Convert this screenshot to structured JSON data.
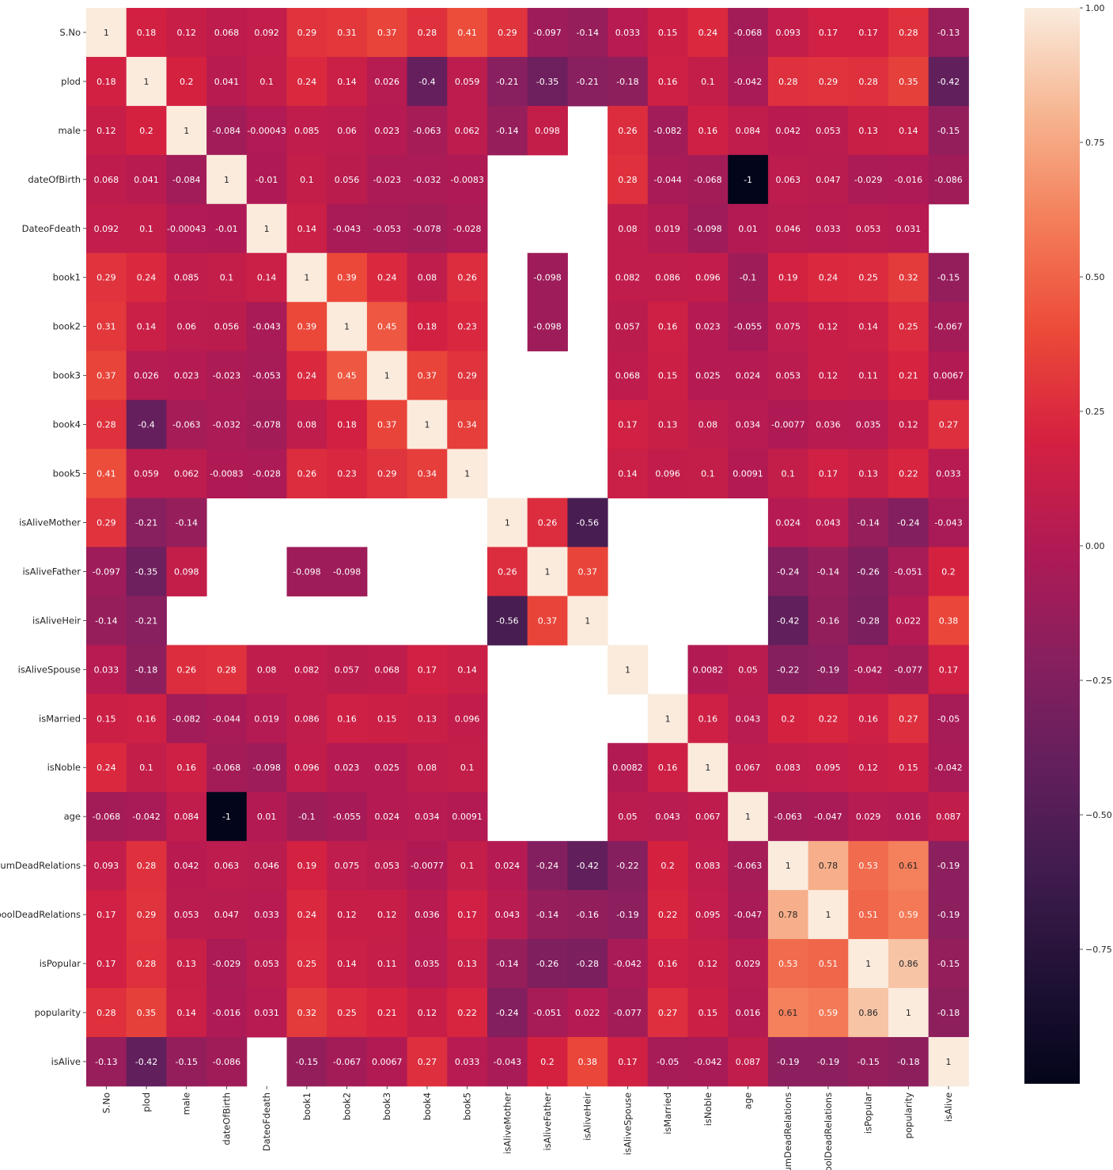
{
  "chart_data": {
    "type": "heatmap",
    "colormap": "rocket",
    "vmin": -1,
    "vmax": 1,
    "annot": true,
    "labels": [
      "S.No",
      "plod",
      "male",
      "dateOfBirth",
      "DateoFdeath",
      "book1",
      "book2",
      "book3",
      "book4",
      "book5",
      "isAliveMother",
      "isAliveFather",
      "isAliveHeir",
      "isAliveSpouse",
      "isMarried",
      "isNoble",
      "age",
      "numDeadRelations",
      "boolDeadRelations",
      "isPopular",
      "popularity",
      "isAlive"
    ],
    "matrix": [
      [
        "1",
        "0.18",
        "0.12",
        "0.068",
        "0.092",
        "0.29",
        "0.31",
        "0.37",
        "0.28",
        "0.41",
        "0.29",
        "-0.097",
        "-0.14",
        "0.033",
        "0.15",
        "0.24",
        "-0.068",
        "0.093",
        "0.17",
        "0.17",
        "0.28",
        "-0.13"
      ],
      [
        "0.18",
        "1",
        "0.2",
        "0.041",
        "0.1",
        "0.24",
        "0.14",
        "0.026",
        "-0.4",
        "0.059",
        "-0.21",
        "-0.35",
        "-0.21",
        "-0.18",
        "0.16",
        "0.1",
        "-0.042",
        "0.28",
        "0.29",
        "0.28",
        "0.35",
        "-0.42"
      ],
      [
        "0.12",
        "0.2",
        "1",
        "-0.084",
        "-0.00043",
        "0.085",
        "0.06",
        "0.023",
        "-0.063",
        "0.062",
        "-0.14",
        "0.098",
        null,
        "0.26",
        "-0.082",
        "0.16",
        "0.084",
        "0.042",
        "0.053",
        "0.13",
        "0.14",
        "-0.15"
      ],
      [
        "0.068",
        "0.041",
        "-0.084",
        "1",
        "-0.01",
        "0.1",
        "0.056",
        "-0.023",
        "-0.032",
        "-0.0083",
        null,
        null,
        null,
        "0.28",
        "-0.044",
        "-0.068",
        "-1",
        "0.063",
        "0.047",
        "-0.029",
        "-0.016",
        "-0.086"
      ],
      [
        "0.092",
        "0.1",
        "-0.00043",
        "-0.01",
        "1",
        "0.14",
        "-0.043",
        "-0.053",
        "-0.078",
        "-0.028",
        null,
        null,
        null,
        "0.08",
        "0.019",
        "-0.098",
        "0.01",
        "0.046",
        "0.033",
        "0.053",
        "0.031",
        null
      ],
      [
        "0.29",
        "0.24",
        "0.085",
        "0.1",
        "0.14",
        "1",
        "0.39",
        "0.24",
        "0.08",
        "0.26",
        null,
        "-0.098",
        null,
        "0.082",
        "0.086",
        "0.096",
        "-0.1",
        "0.19",
        "0.24",
        "0.25",
        "0.32",
        "-0.15"
      ],
      [
        "0.31",
        "0.14",
        "0.06",
        "0.056",
        "-0.043",
        "0.39",
        "1",
        "0.45",
        "0.18",
        "0.23",
        null,
        "-0.098",
        null,
        "0.057",
        "0.16",
        "0.023",
        "-0.055",
        "0.075",
        "0.12",
        "0.14",
        "0.25",
        "-0.067"
      ],
      [
        "0.37",
        "0.026",
        "0.023",
        "-0.023",
        "-0.053",
        "0.24",
        "0.45",
        "1",
        "0.37",
        "0.29",
        null,
        null,
        null,
        "0.068",
        "0.15",
        "0.025",
        "0.024",
        "0.053",
        "0.12",
        "0.11",
        "0.21",
        "0.0067"
      ],
      [
        "0.28",
        "-0.4",
        "-0.063",
        "-0.032",
        "-0.078",
        "0.08",
        "0.18",
        "0.37",
        "1",
        "0.34",
        null,
        null,
        null,
        "0.17",
        "0.13",
        "0.08",
        "0.034",
        "-0.0077",
        "0.036",
        "0.035",
        "0.12",
        "0.27"
      ],
      [
        "0.41",
        "0.059",
        "0.062",
        "-0.0083",
        "-0.028",
        "0.26",
        "0.23",
        "0.29",
        "0.34",
        "1",
        null,
        null,
        null,
        "0.14",
        "0.096",
        "0.1",
        "0.0091",
        "0.1",
        "0.17",
        "0.13",
        "0.22",
        "0.033"
      ],
      [
        "0.29",
        "-0.21",
        "-0.14",
        null,
        null,
        null,
        null,
        null,
        null,
        null,
        "1",
        "0.26",
        "-0.56",
        null,
        null,
        null,
        null,
        "0.024",
        "0.043",
        "-0.14",
        "-0.24",
        "-0.043"
      ],
      [
        "-0.097",
        "-0.35",
        "0.098",
        null,
        null,
        "-0.098",
        "-0.098",
        null,
        null,
        null,
        "0.26",
        "1",
        "0.37",
        null,
        null,
        null,
        null,
        "-0.24",
        "-0.14",
        "-0.26",
        "-0.051",
        "0.2"
      ],
      [
        "-0.14",
        "-0.21",
        null,
        null,
        null,
        null,
        null,
        null,
        null,
        null,
        "-0.56",
        "0.37",
        "1",
        null,
        null,
        null,
        null,
        "-0.42",
        "-0.16",
        "-0.28",
        "0.022",
        "0.38"
      ],
      [
        "0.033",
        "-0.18",
        "0.26",
        "0.28",
        "0.08",
        "0.082",
        "0.057",
        "0.068",
        "0.17",
        "0.14",
        null,
        null,
        null,
        "1",
        null,
        "0.0082",
        "0.05",
        "-0.22",
        "-0.19",
        "-0.042",
        "-0.077",
        "0.17"
      ],
      [
        "0.15",
        "0.16",
        "-0.082",
        "-0.044",
        "0.019",
        "0.086",
        "0.16",
        "0.15",
        "0.13",
        "0.096",
        null,
        null,
        null,
        null,
        "1",
        "0.16",
        "0.043",
        "0.2",
        "0.22",
        "0.16",
        "0.27",
        "-0.05"
      ],
      [
        "0.24",
        "0.1",
        "0.16",
        "-0.068",
        "-0.098",
        "0.096",
        "0.023",
        "0.025",
        "0.08",
        "0.1",
        null,
        null,
        null,
        "0.0082",
        "0.16",
        "1",
        "0.067",
        "0.083",
        "0.095",
        "0.12",
        "0.15",
        "-0.042"
      ],
      [
        "-0.068",
        "-0.042",
        "0.084",
        "-1",
        "0.01",
        "-0.1",
        "-0.055",
        "0.024",
        "0.034",
        "0.0091",
        null,
        null,
        null,
        "0.05",
        "0.043",
        "0.067",
        "1",
        "-0.063",
        "-0.047",
        "0.029",
        "0.016",
        "0.087"
      ],
      [
        "0.093",
        "0.28",
        "0.042",
        "0.063",
        "0.046",
        "0.19",
        "0.075",
        "0.053",
        "-0.0077",
        "0.1",
        "0.024",
        "-0.24",
        "-0.42",
        "-0.22",
        "0.2",
        "0.083",
        "-0.063",
        "1",
        "0.78",
        "0.53",
        "0.61",
        "-0.19"
      ],
      [
        "0.17",
        "0.29",
        "0.053",
        "0.047",
        "0.033",
        "0.24",
        "0.12",
        "0.12",
        "0.036",
        "0.17",
        "0.043",
        "-0.14",
        "-0.16",
        "-0.19",
        "0.22",
        "0.095",
        "-0.047",
        "0.78",
        "1",
        "0.51",
        "0.59",
        "-0.19"
      ],
      [
        "0.17",
        "0.28",
        "0.13",
        "-0.029",
        "0.053",
        "0.25",
        "0.14",
        "0.11",
        "0.035",
        "0.13",
        "-0.14",
        "-0.26",
        "-0.28",
        "-0.042",
        "0.16",
        "0.12",
        "0.029",
        "0.53",
        "0.51",
        "1",
        "0.86",
        "-0.15"
      ],
      [
        "0.28",
        "0.35",
        "0.14",
        "-0.016",
        "0.031",
        "0.32",
        "0.25",
        "0.21",
        "0.12",
        "0.22",
        "-0.24",
        "-0.051",
        "0.022",
        "-0.077",
        "0.27",
        "0.15",
        "0.016",
        "0.61",
        "0.59",
        "0.86",
        "1",
        "-0.18"
      ],
      [
        "-0.13",
        "-0.42",
        "-0.15",
        "-0.086",
        null,
        "-0.15",
        "-0.067",
        "0.0067",
        "0.27",
        "0.033",
        "-0.043",
        "0.2",
        "0.38",
        "0.17",
        "-0.05",
        "-0.042",
        "0.087",
        "-0.19",
        "-0.19",
        "-0.15",
        "-0.18",
        "1"
      ]
    ],
    "colorbar": {
      "ticks": [
        "1.00",
        "0.75",
        "0.50",
        "0.25",
        "0.00",
        "−0.25",
        "−0.50",
        "−0.75"
      ],
      "tick_values": [
        1.0,
        0.75,
        0.5,
        0.25,
        0.0,
        -0.25,
        -0.5,
        -0.75
      ]
    }
  }
}
